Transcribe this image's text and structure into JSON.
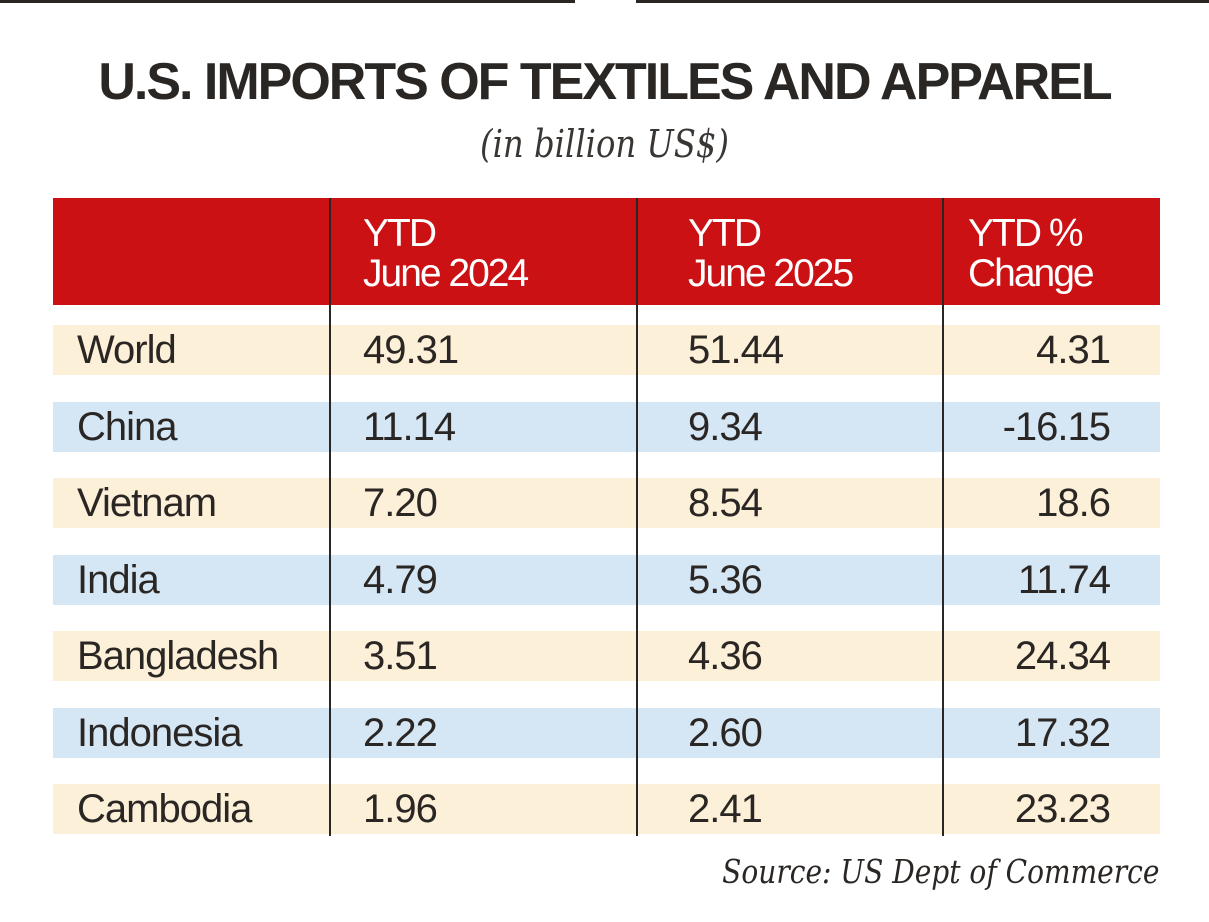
{
  "chart_data": {
    "type": "table",
    "title": "U.S. IMPORTS OF TEXTILES AND APPAREL",
    "subtitle": "(in billion US$)",
    "columns": [
      "",
      "YTD\nJune 2024",
      "YTD\nJune 2025",
      "YTD %\nChange"
    ],
    "column_lines": [
      [
        "",
        ""
      ],
      [
        "YTD",
        "June 2024"
      ],
      [
        "YTD",
        "June 2025"
      ],
      [
        "YTD %",
        "Change"
      ]
    ],
    "rows": [
      [
        "World",
        "49.31",
        "51.44",
        "4.31"
      ],
      [
        "China",
        "11.14",
        "9.34",
        "-16.15"
      ],
      [
        "Vietnam",
        "7.20",
        "8.54",
        "18.6"
      ],
      [
        "India",
        "4.79",
        "5.36",
        "11.74"
      ],
      [
        "Bangladesh",
        "3.51",
        "4.36",
        "24.34"
      ],
      [
        "Indonesia",
        "2.22",
        "2.60",
        "17.32"
      ],
      [
        "Cambodia",
        "1.96",
        "2.41",
        "23.23"
      ]
    ],
    "source": "Source: US Dept of Commerce"
  },
  "colors": {
    "header": "#cc1114",
    "row_odd": "#fdf0d8",
    "row_even": "#d5e6f5",
    "text": "#2a2624"
  }
}
